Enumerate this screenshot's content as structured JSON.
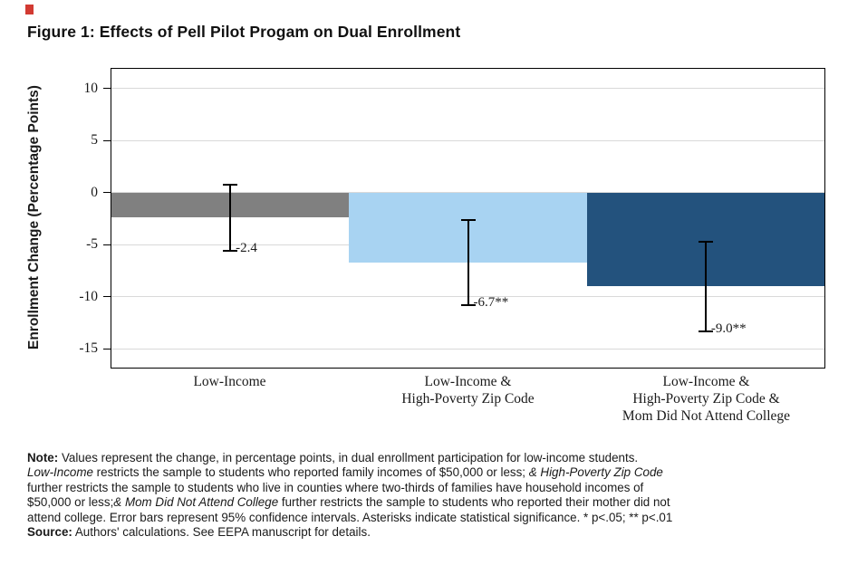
{
  "chart_data": {
    "type": "bar",
    "title": "Figure 1: Effects of Pell Pilot Progam on Dual Enrollment",
    "ylabel": "Enrollment Change (Percentage Points)",
    "xlabel": "",
    "ylim": [
      -16.8,
      11.9
    ],
    "yticks": [
      10,
      5,
      0,
      -5,
      -10,
      -15
    ],
    "grid": true,
    "legend": false,
    "categories": [
      [
        "Low-Income"
      ],
      [
        "Low-Income &",
        "High-Poverty Zip Code"
      ],
      [
        "Low-Income &",
        "High-Poverty Zip Code &",
        "Mom Did Not Attend College"
      ]
    ],
    "values": [
      -2.4,
      -6.7,
      -9.0
    ],
    "value_labels": [
      "-2.4",
      "-6.7**",
      "-9.0**"
    ],
    "error_bars_95ci": [
      {
        "high": 0.8,
        "low": -5.6
      },
      {
        "high": -2.6,
        "low": -10.8
      },
      {
        "high": -4.7,
        "low": -13.3
      }
    ],
    "bar_colors": [
      "#808080",
      "#a8d3f2",
      "#23527d"
    ]
  },
  "notes": {
    "lines": [
      [
        {
          "text": "Note:",
          "bold": true
        },
        {
          "text": " Values represent the change, in percentage points, in dual enrollment participation for low-income students."
        }
      ],
      [
        {
          "text": "Low-Income",
          "italic": true
        },
        {
          "text": " restricts the sample to students who reported family incomes of $50,000 or less; "
        },
        {
          "text": "& High-Poverty Zip Code",
          "italic": true
        }
      ],
      [
        {
          "text": "further restricts the sample to students who live in counties where two-thirds of families have household incomes of"
        }
      ],
      [
        {
          "text": "$50,000 or less;"
        },
        {
          "text": "& Mom Did Not Attend College",
          "italic": true
        },
        {
          "text": " further restricts the sample to students who reported their mother did not"
        }
      ],
      [
        {
          "text": "attend college. Error bars represent 95% confidence intervals. Asterisks indicate statistical significance. * p<.05; ** p<.01"
        }
      ],
      [
        {
          "text": "Source:",
          "bold": true
        },
        {
          "text": " Authors' calculations. See EEPA manuscript for details."
        }
      ]
    ]
  }
}
